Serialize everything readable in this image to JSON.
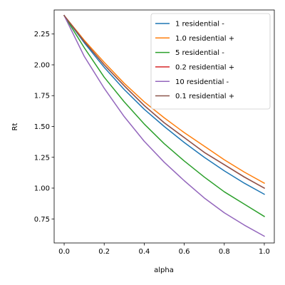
{
  "chart_data": {
    "type": "line",
    "title": "",
    "xlabel": "alpha",
    "ylabel": "Rt",
    "xlim": [
      -0.05,
      1.05
    ],
    "ylim": [
      0.555,
      2.445
    ],
    "x_ticks": [
      0.0,
      0.2,
      0.4,
      0.6,
      0.8,
      1.0
    ],
    "x_tick_labels": [
      "0.0",
      "0.2",
      "0.4",
      "0.6",
      "0.8",
      "1.0"
    ],
    "y_ticks": [
      0.75,
      1.0,
      1.25,
      1.5,
      1.75,
      2.0,
      2.25
    ],
    "y_tick_labels": [
      "0.75",
      "1.00",
      "1.25",
      "1.50",
      "1.75",
      "2.00",
      "2.25"
    ],
    "grid": false,
    "legend_position": "top-right",
    "x": [
      0.0,
      0.1,
      0.2,
      0.3,
      0.4,
      0.5,
      0.6,
      0.7,
      0.8,
      0.9,
      1.0
    ],
    "series": [
      {
        "name": "1 residential -",
        "color": "#1f77b4",
        "values": [
          2.4,
          2.18,
          1.98,
          1.8,
          1.64,
          1.5,
          1.37,
          1.25,
          1.14,
          1.04,
          0.95
        ]
      },
      {
        "name": "1.0 residential +",
        "color": "#ff7f0e",
        "values": [
          2.4,
          2.2,
          2.02,
          1.85,
          1.7,
          1.57,
          1.45,
          1.34,
          1.23,
          1.13,
          1.04
        ]
      },
      {
        "name": "5 residential -",
        "color": "#2ca02c",
        "values": [
          2.4,
          2.14,
          1.9,
          1.7,
          1.52,
          1.36,
          1.22,
          1.09,
          0.97,
          0.87,
          0.77
        ]
      },
      {
        "name": "0.2 residential +",
        "color": "#d62728",
        "values": [
          2.4,
          2.19,
          2.0,
          1.83,
          1.67,
          1.53,
          1.41,
          1.29,
          1.19,
          1.09,
          1.0
        ]
      },
      {
        "name": "10 residential -",
        "color": "#9467bd",
        "values": [
          2.4,
          2.07,
          1.81,
          1.58,
          1.38,
          1.21,
          1.06,
          0.92,
          0.8,
          0.7,
          0.61
        ]
      },
      {
        "name": "0.1 residential +",
        "color": "#8c564b",
        "values": [
          2.4,
          2.19,
          2.0,
          1.83,
          1.67,
          1.53,
          1.41,
          1.29,
          1.19,
          1.09,
          1.0
        ]
      }
    ]
  }
}
